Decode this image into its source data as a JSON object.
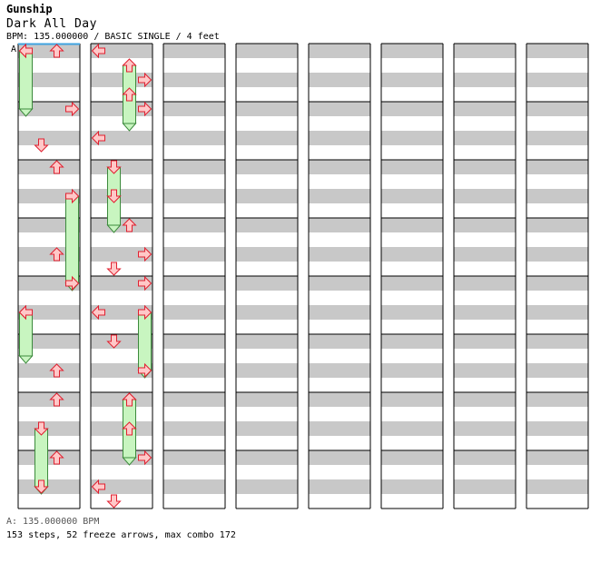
{
  "header": {
    "artist": "Gunship",
    "title": "Dark All Day",
    "info": "BPM: 135.000000 / BASIC SINGLE / 4 feet"
  },
  "marker_label": "A",
  "footer": {
    "bpm_line": "A: 135.000000 BPM",
    "stats": "153 steps, 52 freeze arrows, max combo 172"
  },
  "colors": {
    "stripe": "#c8c8c8",
    "background": "#ffffff",
    "arrow_fill": "#ffc8c8",
    "arrow_stroke": "#e02030",
    "freeze_fill": "#c8f5c0",
    "freeze_stroke": "#3c8a3c",
    "bpm_marker": "#3fa3e0"
  },
  "chart_data": {
    "type": "step-chart",
    "lanes": [
      "left",
      "down",
      "up",
      "right"
    ],
    "columns": 8,
    "measures_per_column": 8,
    "beats_per_measure": 4,
    "notes_unit": "beat index from song start",
    "freezes_unit": "start and end beat index",
    "notes": [
      {
        "b": 0,
        "l": 0
      },
      {
        "b": 0,
        "l": 2
      },
      {
        "b": 4,
        "l": 3
      },
      {
        "b": 6.5,
        "l": 1
      },
      {
        "b": 8,
        "l": 2
      },
      {
        "b": 14,
        "l": 2
      },
      {
        "b": 16,
        "l": 3
      },
      {
        "b": 18,
        "l": 0
      },
      {
        "b": 22,
        "l": 2
      },
      {
        "b": 24,
        "l": 2
      },
      {
        "b": 28,
        "l": 2
      },
      {
        "b": 30,
        "l": 1
      },
      {
        "b": 32,
        "l": 0
      },
      {
        "b": 34,
        "l": 3
      },
      {
        "b": 35,
        "l": 2
      },
      {
        "b": 36,
        "l": 3
      },
      {
        "b": 38,
        "l": 0
      },
      {
        "b": 42,
        "l": 1
      },
      {
        "b": 44,
        "l": 2
      },
      {
        "b": 46,
        "l": 3
      },
      {
        "b": 47,
        "l": 1
      },
      {
        "b": 48,
        "l": 3
      },
      {
        "b": 50,
        "l": 0
      },
      {
        "b": 52,
        "l": 1
      },
      {
        "b": 54,
        "l": 3
      },
      {
        "b": 56,
        "l": 2
      },
      {
        "b": 58,
        "l": 2
      },
      {
        "b": 60,
        "l": 3
      },
      {
        "b": 62,
        "l": 0
      },
      {
        "b": 63,
        "l": 1
      }
    ],
    "freezes": [
      {
        "s": 0,
        "e": 4,
        "l": 0
      },
      {
        "s": 10,
        "e": 16,
        "l": 3
      },
      {
        "s": 26,
        "e": 30,
        "l": 1
      },
      {
        "s": 33,
        "e": 37,
        "l": 2
      },
      {
        "s": 40,
        "e": 44,
        "l": 1
      },
      {
        "s": 50,
        "e": 54,
        "l": 3
      },
      {
        "s": 56,
        "e": 60,
        "l": 2
      },
      {
        "s": 18,
        "e": 21,
        "l": 0
      }
    ]
  }
}
